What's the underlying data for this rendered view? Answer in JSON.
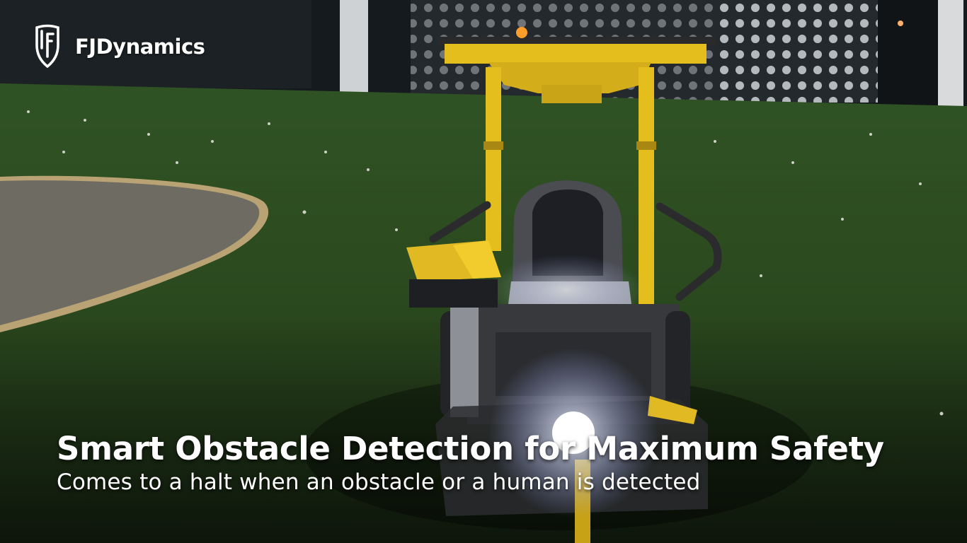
{
  "brand": {
    "name": "FJDynamics",
    "logo_icon": "shield-f-logo-icon"
  },
  "caption": {
    "title": "Smart Obstacle Detection for Maximum Safety",
    "subtitle": "Comes to a halt when an obstacle or a human is detected"
  },
  "colors": {
    "turf": "#3e6b2b",
    "mower_yellow": "#e8c21e",
    "text": "#ffffff"
  }
}
